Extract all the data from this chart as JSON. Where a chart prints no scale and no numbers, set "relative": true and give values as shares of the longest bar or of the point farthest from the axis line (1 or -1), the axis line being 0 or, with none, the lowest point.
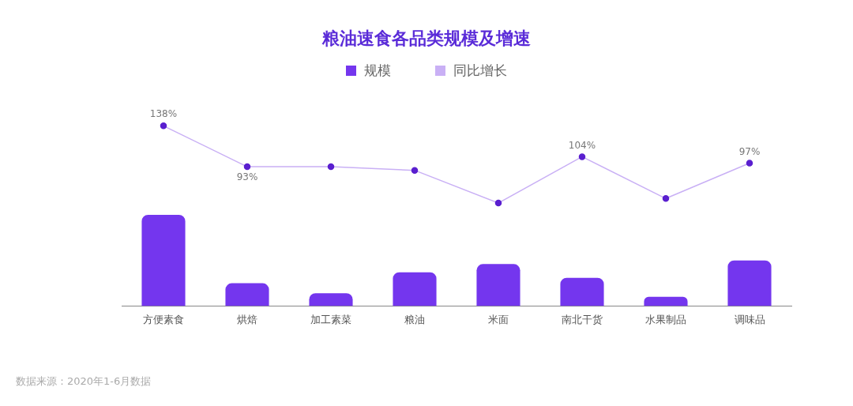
{
  "chart_data": [
    {
      "type": "line",
      "title": "粮油速食各品类规模及增速",
      "categories": [
        null,
        null,
        null,
        null,
        null,
        null,
        null,
        null
      ],
      "legend": "top",
      "grid": false,
      "marker": "circle",
      "series": [
        {
          "name": "同比增长",
          "color": "#c9b0f5",
          "values": [
            138,
            93,
            93,
            89,
            53,
            104,
            58,
            97
          ],
          "value_labels": [
            "138%",
            "93%",
            null,
            null,
            null,
            "104%",
            null,
            "97%"
          ]
        }
      ]
    },
    {
      "type": "bar",
      "categories": [
        "方便素食",
        "烘焙",
        "加工素菜",
        "粮油",
        "米面",
        "南北干货",
        "水果制品",
        "调味品"
      ],
      "relative": true,
      "legend": "top",
      "grid": false,
      "series": [
        {
          "name": "规模",
          "color": "#7436ee",
          "values": [
            1,
            0.25,
            0.14,
            0.37,
            0.46,
            0.31,
            0.1,
            0.5
          ]
        }
      ],
      "annotations": [
        "数据来源：2020年1-6月数据"
      ]
    }
  ]
}
